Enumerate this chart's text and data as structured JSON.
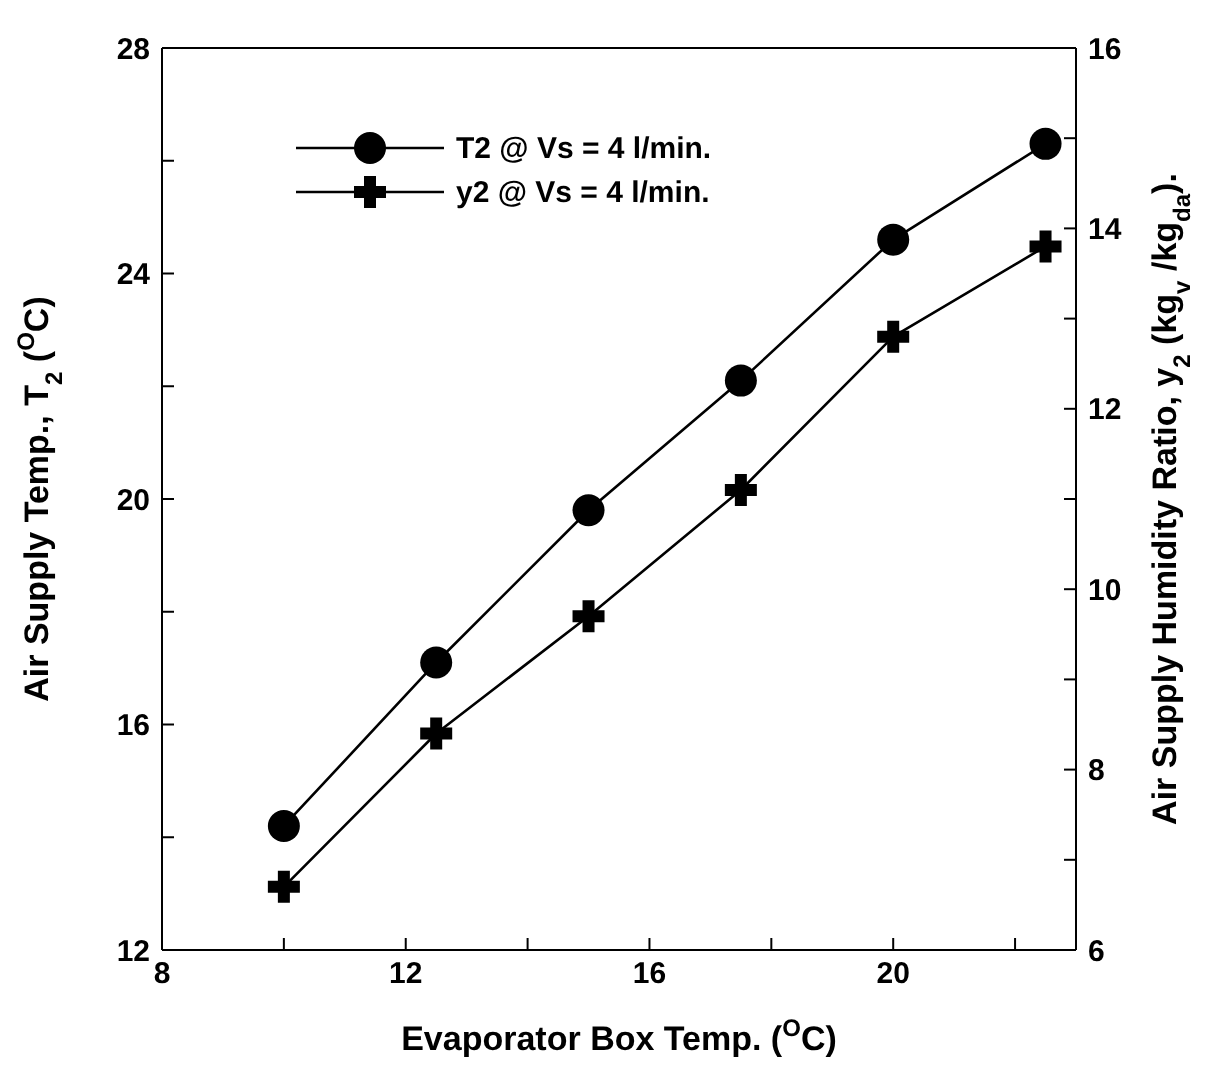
{
  "chart_data": {
    "type": "line",
    "xlabel": "Evaporator Box Temp. ($^{O}$C)",
    "ylabel": "Air Supply Temp., T$_{2}$ ($^{O}$C)",
    "y2label": "Air Supply Humidity Ratio, y$_{2}$ (kg$_{v}$ /kg$_{da}$).",
    "x": [
      10,
      12.5,
      15,
      17.5,
      20,
      22.5
    ],
    "series": [
      {
        "name": "T2 @ Vs = 4 l/min.",
        "color": "#000000",
        "marker": "circle",
        "values": [
          14.2,
          17.1,
          19.8,
          22.1,
          24.6,
          26.3
        ]
      },
      {
        "name": "y2 @ Vs = 4 l/min.",
        "color": "#000000",
        "marker": "cross",
        "axis": "y2",
        "values": [
          6.7,
          8.4,
          9.7,
          11.1,
          12.8,
          13.8
        ]
      }
    ],
    "xlim": [
      8,
      23
    ],
    "xticks": [
      8,
      {
        "value": 10,
        "label": null
      },
      12,
      {
        "value": 14,
        "label": null
      },
      16,
      {
        "value": 18,
        "label": null
      },
      20,
      {
        "value": 22,
        "label": null
      }
    ],
    "ylim": [
      12,
      28
    ],
    "yticks": [
      12,
      {
        "value": 14,
        "label": null
      },
      16,
      {
        "value": 18,
        "label": null
      },
      20,
      {
        "value": 22,
        "label": null
      },
      24,
      {
        "value": 26,
        "label": null
      },
      28
    ],
    "y2lim": [
      6,
      16
    ],
    "y2ticks": [
      6,
      {
        "value": 7,
        "label": null
      },
      8,
      {
        "value": 9,
        "label": null
      },
      10,
      {
        "value": 11,
        "label": null
      },
      12,
      {
        "value": 13,
        "label": null
      },
      14,
      {
        "value": 15,
        "label": null
      },
      16
    ],
    "legend": "top left",
    "line_style": "solid"
  }
}
